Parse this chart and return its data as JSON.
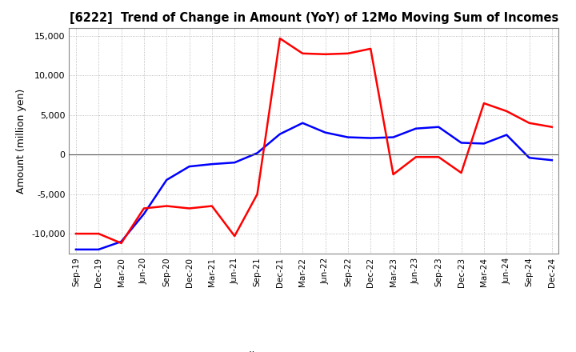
{
  "title": "[6222]  Trend of Change in Amount (YoY) of 12Mo Moving Sum of Incomes",
  "ylabel": "Amount (million yen)",
  "ylim": [
    -12500,
    16000
  ],
  "yticks": [
    -10000,
    -5000,
    0,
    5000,
    10000,
    15000
  ],
  "x_labels": [
    "Sep-19",
    "Dec-19",
    "Mar-20",
    "Jun-20",
    "Sep-20",
    "Dec-20",
    "Mar-21",
    "Jun-21",
    "Sep-21",
    "Dec-21",
    "Mar-22",
    "Jun-22",
    "Sep-22",
    "Dec-22",
    "Mar-23",
    "Jun-23",
    "Sep-23",
    "Dec-23",
    "Mar-24",
    "Jun-24",
    "Sep-24",
    "Dec-24"
  ],
  "ordinary_income": [
    -12000,
    -12000,
    -11000,
    -7500,
    -3200,
    -1500,
    -1200,
    -1000,
    200,
    2600,
    4000,
    2800,
    2200,
    2100,
    2200,
    3300,
    3500,
    1500,
    1400,
    2500,
    -400,
    -700
  ],
  "net_income": [
    -10000,
    -10000,
    -11200,
    -6800,
    -6500,
    -6800,
    -6500,
    -10300,
    -5000,
    14700,
    12800,
    12700,
    12800,
    13400,
    -2500,
    -300,
    -300,
    -2300,
    6500,
    5500,
    4000,
    3500
  ],
  "ordinary_color": "#0000ff",
  "net_color": "#ff0000",
  "background_color": "#ffffff",
  "grid_color": "#aaaaaa",
  "title_color": "#000000"
}
